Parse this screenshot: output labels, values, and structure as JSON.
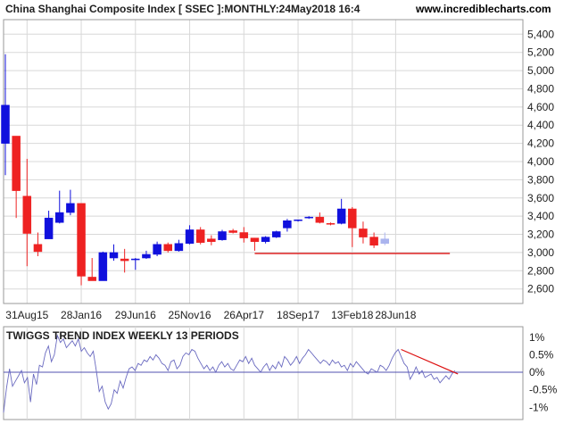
{
  "header": {
    "title": "China Shanghai Composite Index [ SSEC ]:MONTHLY:24May2018 16:4",
    "site": "www.incrediblecharts.com"
  },
  "indicator": {
    "title": "TWIGGS TREND INDEX WEEKLY 13 PERIODS"
  },
  "colors": {
    "up": "#1010dd",
    "down": "#ee2222",
    "current": "#aab4ee",
    "support_line": "#dd1111",
    "trend_line": "#dd1111",
    "indicator_line": "#6a6ac0",
    "grid": "#d8d8d8",
    "axis": "#9a9a9a"
  },
  "chart_data": [
    {
      "type": "candlestick",
      "title": "China Shanghai Composite Index [ SSEC ]:MONTHLY:24May2018 16:4",
      "y_ticks": [
        "5,400",
        "5,200",
        "5,000",
        "4,800",
        "4,600",
        "4,400",
        "4,200",
        "4,000",
        "3,800",
        "3,600",
        "3,400",
        "3,200",
        "3,000",
        "2,800",
        "2,600"
      ],
      "y_tick_values": [
        5400,
        5200,
        5000,
        4800,
        4600,
        4400,
        4200,
        4000,
        3800,
        3600,
        3400,
        3200,
        3000,
        2800,
        2600
      ],
      "ylim": [
        2440,
        5560
      ],
      "x_ticks": [
        "31Aug15",
        "28Jan16",
        "29Jun16",
        "25Nov16",
        "26Apr17",
        "18Sep17",
        "13Feb18",
        "28Jun18"
      ],
      "x_tick_month_index": [
        2,
        7,
        12,
        17,
        22,
        27,
        32,
        36
      ],
      "grid": true,
      "horizontal_line": {
        "value": 2990,
        "from_month_index": 23,
        "to_month_index": 41
      },
      "candles": [
        {
          "m": 0,
          "open": 4200,
          "high": 5180,
          "low": 3850,
          "close": 4620
        },
        {
          "m": 1,
          "open": 4280,
          "high": 4280,
          "low": 3380,
          "close": 3680
        },
        {
          "m": 2,
          "open": 3620,
          "high": 4030,
          "low": 2850,
          "close": 3210
        },
        {
          "m": 3,
          "open": 3090,
          "high": 3220,
          "low": 2960,
          "close": 3010
        },
        {
          "m": 4,
          "open": 3150,
          "high": 3460,
          "low": 3150,
          "close": 3380
        },
        {
          "m": 5,
          "open": 3330,
          "high": 3680,
          "low": 3320,
          "close": 3440
        },
        {
          "m": 6,
          "open": 3440,
          "high": 3690,
          "low": 3410,
          "close": 3540
        },
        {
          "m": 7,
          "open": 3540,
          "high": 3540,
          "low": 2640,
          "close": 2740
        },
        {
          "m": 8,
          "open": 2730,
          "high": 2940,
          "low": 2690,
          "close": 2690
        },
        {
          "m": 9,
          "open": 2690,
          "high": 3010,
          "low": 2690,
          "close": 3000
        },
        {
          "m": 10,
          "open": 2940,
          "high": 3090,
          "low": 2910,
          "close": 3000
        },
        {
          "m": 11,
          "open": 2930,
          "high": 3040,
          "low": 2780,
          "close": 2910
        },
        {
          "m": 12,
          "open": 2920,
          "high": 2940,
          "low": 2810,
          "close": 2930
        },
        {
          "m": 13,
          "open": 2940,
          "high": 3020,
          "low": 2930,
          "close": 2980
        },
        {
          "m": 14,
          "open": 2980,
          "high": 3120,
          "low": 2960,
          "close": 3090
        },
        {
          "m": 15,
          "open": 3090,
          "high": 3110,
          "low": 3000,
          "close": 3020
        },
        {
          "m": 16,
          "open": 3020,
          "high": 3140,
          "low": 3010,
          "close": 3100
        },
        {
          "m": 17,
          "open": 3100,
          "high": 3300,
          "low": 3090,
          "close": 3250
        },
        {
          "m": 18,
          "open": 3250,
          "high": 3280,
          "low": 3090,
          "close": 3110
        },
        {
          "m": 19,
          "open": 3150,
          "high": 3190,
          "low": 3080,
          "close": 3120
        },
        {
          "m": 20,
          "open": 3140,
          "high": 3250,
          "low": 3130,
          "close": 3230
        },
        {
          "m": 21,
          "open": 3240,
          "high": 3260,
          "low": 3210,
          "close": 3220
        },
        {
          "m": 22,
          "open": 3220,
          "high": 3280,
          "low": 3110,
          "close": 3160
        },
        {
          "m": 23,
          "open": 3160,
          "high": 3160,
          "low": 3020,
          "close": 3120
        },
        {
          "m": 24,
          "open": 3120,
          "high": 3180,
          "low": 3100,
          "close": 3170
        },
        {
          "m": 25,
          "open": 3170,
          "high": 3240,
          "low": 3160,
          "close": 3230
        },
        {
          "m": 26,
          "open": 3270,
          "high": 3370,
          "low": 3230,
          "close": 3350
        },
        {
          "m": 27,
          "open": 3350,
          "high": 3360,
          "low": 3340,
          "close": 3360
        },
        {
          "m": 28,
          "open": 3380,
          "high": 3400,
          "low": 3370,
          "close": 3390
        },
        {
          "m": 29,
          "open": 3390,
          "high": 3440,
          "low": 3320,
          "close": 3330
        },
        {
          "m": 30,
          "open": 3320,
          "high": 3330,
          "low": 3300,
          "close": 3310
        },
        {
          "m": 31,
          "open": 3320,
          "high": 3590,
          "low": 3310,
          "close": 3480
        },
        {
          "m": 32,
          "open": 3480,
          "high": 3500,
          "low": 3060,
          "close": 3270
        },
        {
          "m": 33,
          "open": 3260,
          "high": 3340,
          "low": 3100,
          "close": 3170
        },
        {
          "m": 34,
          "open": 3170,
          "high": 3220,
          "low": 3050,
          "close": 3080
        },
        {
          "m": 35,
          "open": 3100,
          "high": 3220,
          "low": 3080,
          "close": 3150
        }
      ]
    },
    {
      "type": "line",
      "title": "TWIGGS TREND INDEX WEEKLY 13 PERIODS",
      "y_ticks": [
        "1%",
        "0.5%",
        "0%",
        "-0.5%",
        "-1%"
      ],
      "y_tick_values": [
        1,
        0.5,
        0,
        -0.5,
        -1
      ],
      "ylim": [
        -1.35,
        1.3
      ],
      "zero_line": 0,
      "x_range_weeks": [
        0,
        160
      ],
      "trend_line": [
        {
          "w": 133,
          "v": 0.65
        },
        {
          "w": 152,
          "v": -0.05
        }
      ],
      "series": [
        {
          "values": [
            -1.15,
            -0.45,
            0.1,
            -0.4,
            -0.25,
            -0.1,
            0.05,
            -0.3,
            -0.15,
            -0.85,
            -0.05,
            -0.35,
            0.2,
            0.15,
            0.55,
            0.75,
            0.3,
            0.5,
            1.05,
            0.85,
            0.95,
            0.7,
            0.8,
            0.9,
            0.75,
            0.95,
            0.6,
            0.7,
            0.55,
            0.45,
            0.6,
            0.05,
            -0.55,
            -0.4,
            -0.85,
            -1.05,
            -0.9,
            -0.5,
            -0.6,
            -0.25,
            -0.45,
            -0.15,
            0.1,
            0.15,
            0.05,
            0.25,
            0.2,
            0.35,
            0.3,
            0.45,
            0.35,
            0.5,
            0.4,
            0.25,
            0.2,
            0.05,
            0.3,
            0.35,
            0.1,
            0.2,
            0.45,
            0.55,
            0.5,
            0.65,
            0.6,
            0.4,
            0.25,
            0.1,
            0.2,
            0.05,
            0.15,
            0.0,
            0.2,
            0.3,
            0.15,
            0.25,
            0.1,
            0.05,
            0.2,
            0.35,
            0.3,
            0.45,
            0.25,
            0.4,
            0.2,
            0.1,
            0.0,
            0.15,
            0.25,
            0.05,
            0.2,
            0.1,
            0.3,
            0.15,
            0.45,
            0.35,
            0.2,
            0.3,
            0.45,
            0.25,
            0.4,
            0.5,
            0.65,
            0.55,
            0.45,
            0.35,
            0.25,
            0.35,
            0.3,
            0.2,
            0.35,
            0.25,
            0.3,
            0.15,
            0.2,
            0.05,
            0.25,
            0.15,
            0.3,
            0.2,
            0.1,
            0.0,
            -0.05,
            0.1,
            0.05,
            0.0,
            0.2,
            0.15,
            0.05,
            0.2,
            0.4,
            0.55,
            0.65,
            0.45,
            0.25,
            0.15,
            -0.2,
            -0.05,
            0.15,
            -0.05,
            0.05,
            -0.15,
            -0.1,
            -0.05,
            -0.2,
            -0.15,
            -0.3,
            -0.2,
            -0.1,
            -0.2,
            -0.05,
            0.05
          ]
        }
      ]
    }
  ]
}
